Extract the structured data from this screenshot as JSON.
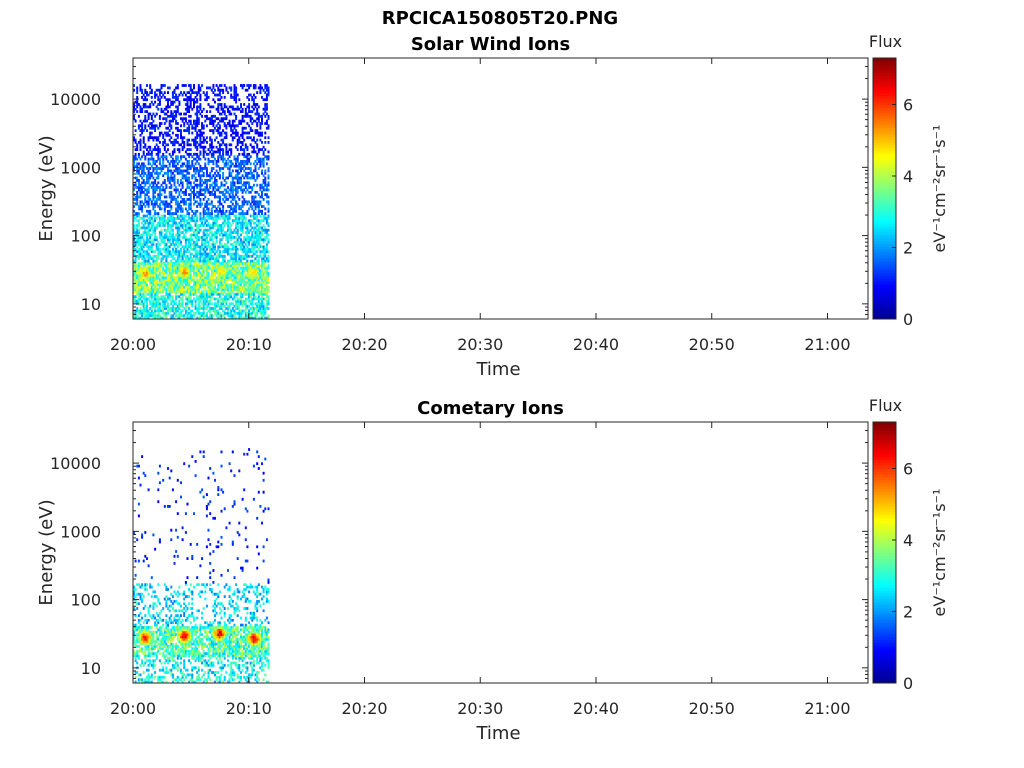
{
  "figure": {
    "title": "RPCICA150805T20.PNG"
  },
  "colormap": [
    "#00008f",
    "#0000ff",
    "#0080ff",
    "#00ffff",
    "#80ff80",
    "#ffff00",
    "#ff8000",
    "#ff0000",
    "#800000"
  ],
  "chart_data": [
    {
      "type": "heatmap",
      "title": "Solar Wind Ions",
      "xlabel": "Time",
      "ylabel": "Energy (eV)",
      "x_ticks": [
        "20:00",
        "20:10",
        "20:20",
        "20:30",
        "20:40",
        "20:50",
        "21:00"
      ],
      "x_tick_minutes": [
        0,
        10,
        20,
        30,
        40,
        50,
        60
      ],
      "xlim_minutes": [
        0,
        63.5
      ],
      "y_scale": "log",
      "y_ticks": [
        "10",
        "100",
        "1000",
        "10000"
      ],
      "y_tick_values": [
        10,
        100,
        1000,
        10000
      ],
      "ylim": [
        6,
        40000
      ],
      "data_extent_minutes": [
        0,
        11.7
      ],
      "colorbar": {
        "title": "Flux",
        "label": "eV⁻¹cm⁻²sr⁻¹s⁻¹",
        "ticks": [
          "0",
          "2",
          "4",
          "6"
        ],
        "tick_values": [
          0,
          2,
          4,
          6
        ],
        "range": [
          0,
          7.3
        ]
      },
      "bands": [
        {
          "emin": 6,
          "emax": 15,
          "density": 0.7,
          "value": 2.9
        },
        {
          "emin": 15,
          "emax": 40,
          "density": 0.9,
          "value": 3.6
        },
        {
          "emin": 40,
          "emax": 200,
          "density": 0.65,
          "value": 2.6
        },
        {
          "emin": 200,
          "emax": 1500,
          "density": 0.5,
          "value": 1.6
        },
        {
          "emin": 1500,
          "emax": 16000,
          "density": 0.38,
          "value": 1.0
        }
      ],
      "hotspots": [
        {
          "t": 1.0,
          "e": 28,
          "value": 5.4
        },
        {
          "t": 4.4,
          "e": 30,
          "value": 5.6
        },
        {
          "t": 7.6,
          "e": 31,
          "value": 5.2
        },
        {
          "t": 10.3,
          "e": 29,
          "value": 5.3
        }
      ]
    },
    {
      "type": "heatmap",
      "title": "Cometary Ions",
      "xlabel": "Time",
      "ylabel": "Energy (eV)",
      "x_ticks": [
        "20:00",
        "20:10",
        "20:20",
        "20:30",
        "20:40",
        "20:50",
        "21:00"
      ],
      "x_tick_minutes": [
        0,
        10,
        20,
        30,
        40,
        50,
        60
      ],
      "xlim_minutes": [
        0,
        63.5
      ],
      "y_scale": "log",
      "y_ticks": [
        "10",
        "100",
        "1000",
        "10000"
      ],
      "y_tick_values": [
        10,
        100,
        1000,
        10000
      ],
      "ylim": [
        6,
        40000
      ],
      "data_extent_minutes": [
        0,
        11.7
      ],
      "colorbar": {
        "title": "Flux",
        "label": "eV⁻¹cm⁻²sr⁻¹s⁻¹",
        "ticks": [
          "0",
          "2",
          "4",
          "6"
        ],
        "tick_values": [
          0,
          2,
          4,
          6
        ],
        "range": [
          0,
          7.3
        ]
      },
      "bands": [
        {
          "emin": 6,
          "emax": 15,
          "density": 0.35,
          "value": 2.8
        },
        {
          "emin": 15,
          "emax": 40,
          "density": 0.7,
          "value": 3.2
        },
        {
          "emin": 40,
          "emax": 180,
          "density": 0.25,
          "value": 2.5
        },
        {
          "emin": 180,
          "emax": 16000,
          "density": 0.03,
          "value": 1.2
        }
      ],
      "hotspots": [
        {
          "t": 1.0,
          "e": 28,
          "value": 6.4
        },
        {
          "t": 4.4,
          "e": 30,
          "value": 6.9
        },
        {
          "t": 7.4,
          "e": 32,
          "value": 6.7
        },
        {
          "t": 10.4,
          "e": 27,
          "value": 6.8
        }
      ]
    }
  ]
}
